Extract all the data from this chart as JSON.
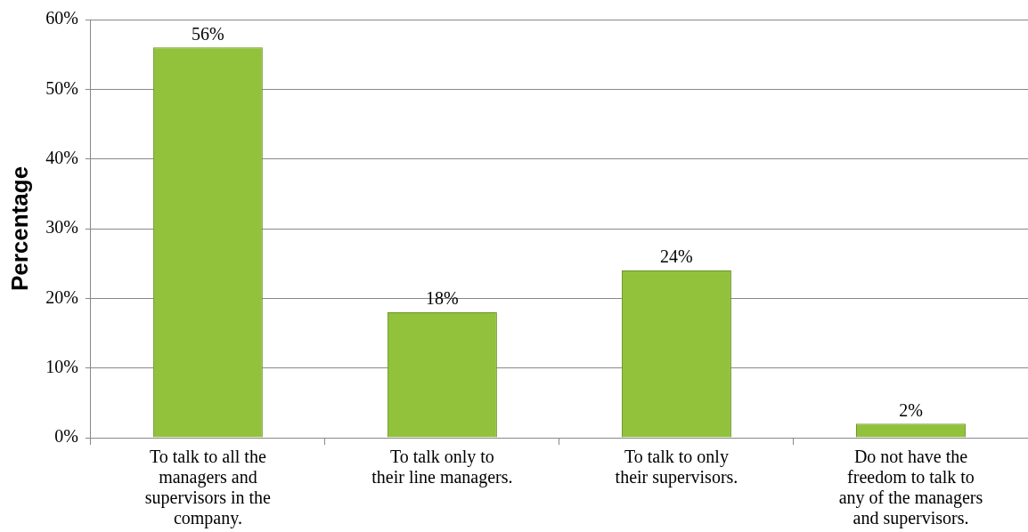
{
  "chart_data": {
    "type": "bar",
    "ylabel": "Percentage",
    "categories": [
      "To talk to all the managers and supervisors in the company.",
      "To talk only to their line managers.",
      "To talk to only their supervisors.",
      "Do not have the freedom to talk to any of the managers and supervisors."
    ],
    "values": [
      56,
      18,
      24,
      2
    ],
    "value_labels": [
      "56%",
      "18%",
      "24%",
      "2%"
    ],
    "color": "#92c13c",
    "ylim": [
      0,
      60
    ],
    "yticks": [
      {
        "value": 0,
        "label": "0%"
      },
      {
        "value": 10,
        "label": "10%"
      },
      {
        "value": 20,
        "label": "20%"
      },
      {
        "value": 30,
        "label": "30%"
      },
      {
        "value": 40,
        "label": "40%"
      },
      {
        "value": 50,
        "label": "50%"
      },
      {
        "value": 60,
        "label": "60%"
      }
    ],
    "grid": "y",
    "legend": false
  }
}
